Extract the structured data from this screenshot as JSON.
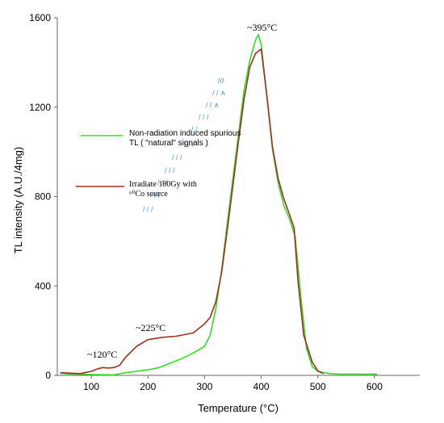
{
  "chart_data": {
    "type": "line",
    "title": "",
    "xlabel": "Temperature (°C)",
    "ylabel": "TL intensity (A.U./4mg)",
    "xlim": [
      40,
      680
    ],
    "ylim": [
      0,
      1600
    ],
    "xticks": [
      100,
      200,
      300,
      400,
      500,
      600
    ],
    "yticks": [
      0,
      400,
      800,
      1200,
      1600
    ],
    "grid": false,
    "legend_placement": "left-middle",
    "series": [
      {
        "name": "Non-radiation induced spurious TL  ( \"natural\" signals )",
        "color": "#33dd22",
        "x": [
          45,
          60,
          80,
          100,
          120,
          140,
          160,
          180,
          200,
          220,
          240,
          260,
          280,
          300,
          310,
          320,
          330,
          340,
          350,
          360,
          370,
          380,
          390,
          395,
          400,
          410,
          420,
          430,
          440,
          450,
          460,
          470,
          480,
          490,
          500,
          520,
          540,
          560,
          580,
          600,
          605
        ],
        "y": [
          10,
          6,
          5,
          4,
          3,
          2,
          12,
          18,
          25,
          35,
          55,
          75,
          100,
          130,
          180,
          300,
          470,
          680,
          880,
          1080,
          1280,
          1410,
          1500,
          1525,
          1480,
          1250,
          1010,
          860,
          760,
          700,
          620,
          350,
          120,
          40,
          18,
          8,
          5,
          6,
          5,
          6,
          4
        ]
      },
      {
        "name": "Irradiate 180Gy with ⁶⁰Co source",
        "color": "#a0301e",
        "x": [
          45,
          60,
          80,
          100,
          110,
          120,
          130,
          140,
          150,
          160,
          180,
          200,
          225,
          250,
          280,
          300,
          310,
          320,
          330,
          340,
          350,
          360,
          370,
          380,
          390,
          400,
          410,
          420,
          430,
          440,
          450,
          458,
          465,
          475,
          490,
          500,
          510
        ],
        "y": [
          12,
          10,
          8,
          18,
          28,
          35,
          33,
          35,
          45,
          80,
          130,
          160,
          170,
          175,
          190,
          230,
          260,
          330,
          460,
          650,
          850,
          1050,
          1240,
          1380,
          1440,
          1460,
          1250,
          1020,
          880,
          790,
          720,
          660,
          420,
          180,
          60,
          20,
          8
        ]
      }
    ],
    "annotations": [
      {
        "text": "~395°C",
        "x": 395,
        "y": 1525
      },
      {
        "text": "~225°C",
        "x": 225,
        "y": 170
      },
      {
        "text": "~120°C",
        "x": 120,
        "y": 35
      }
    ]
  }
}
